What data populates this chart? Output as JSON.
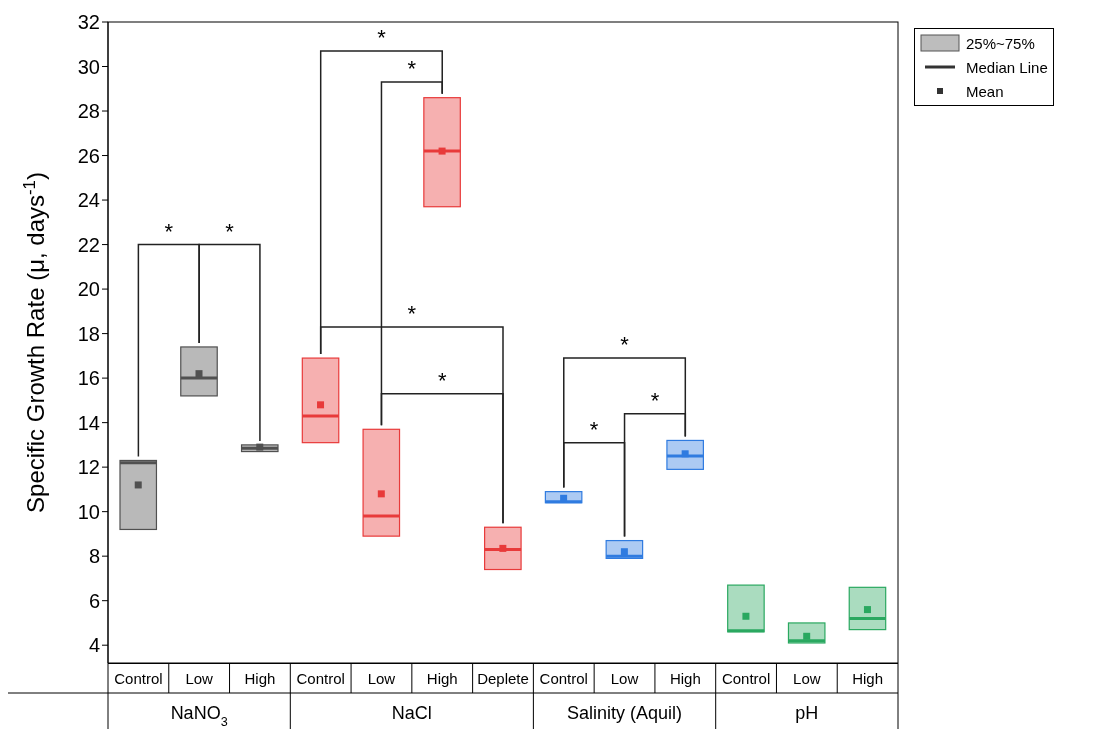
{
  "chart_data": {
    "type": "box",
    "ylabel": "Specific Growth Rate (μ, days$^{-1}$)",
    "categories": [
      "Control",
      "Low",
      "High",
      "Control",
      "Low",
      "High",
      "Deplete",
      "Control",
      "Low",
      "High",
      "Control",
      "Low",
      "High"
    ],
    "ylim": [
      3.2,
      32
    ],
    "yticks": [
      4,
      6,
      8,
      10,
      12,
      14,
      16,
      18,
      20,
      22,
      24,
      26,
      28,
      30,
      32
    ],
    "series": [
      {
        "color": "#505050",
        "boxes": [
          {
            "low": 9.2,
            "q1": 9.2,
            "median": 12.2,
            "q3": 12.3,
            "high": 12.3,
            "mean": 11.2
          },
          {
            "low": 15.2,
            "q1": 15.2,
            "median": 16.0,
            "q3": 17.4,
            "high": 17.4,
            "mean": 16.2
          },
          {
            "low": 12.7,
            "q1": 12.7,
            "median": 12.85,
            "q3": 13.0,
            "high": 13.0,
            "mean": 12.9
          },
          null,
          null,
          null,
          null,
          null,
          null,
          null,
          null,
          null,
          null
        ]
      },
      {
        "color": "#e83a3a",
        "boxes": [
          null,
          null,
          null,
          {
            "low": 13.1,
            "q1": 13.1,
            "median": 14.3,
            "q3": 16.9,
            "high": 16.9,
            "mean": 14.8
          },
          {
            "low": 8.9,
            "q1": 8.9,
            "median": 9.8,
            "q3": 13.7,
            "high": 13.7,
            "mean": 10.8
          },
          {
            "low": 23.7,
            "q1": 23.7,
            "median": 26.2,
            "q3": 28.6,
            "high": 28.6,
            "mean": 26.2
          },
          {
            "low": 7.4,
            "q1": 7.4,
            "median": 8.3,
            "q3": 9.3,
            "high": 9.3,
            "mean": 8.35
          },
          null,
          null,
          null,
          null,
          null,
          null
        ]
      },
      {
        "color": "#2f7be0",
        "boxes": [
          null,
          null,
          null,
          null,
          null,
          null,
          null,
          {
            "low": 10.4,
            "q1": 10.4,
            "median": 10.45,
            "q3": 10.9,
            "high": 10.9,
            "mean": 10.6
          },
          {
            "low": 7.9,
            "q1": 7.9,
            "median": 8.0,
            "q3": 8.7,
            "high": 8.7,
            "mean": 8.2
          },
          {
            "low": 11.9,
            "q1": 11.9,
            "median": 12.5,
            "q3": 13.2,
            "high": 13.2,
            "mean": 12.6
          },
          null,
          null,
          null
        ]
      },
      {
        "color": "#2aa860",
        "boxes": [
          null,
          null,
          null,
          null,
          null,
          null,
          null,
          null,
          null,
          null,
          {
            "low": 4.6,
            "q1": 4.6,
            "median": 4.65,
            "q3": 6.7,
            "high": 6.7,
            "mean": 5.3
          },
          {
            "low": 4.1,
            "q1": 4.1,
            "median": 4.2,
            "q3": 5.0,
            "high": 5.0,
            "mean": 4.4
          },
          {
            "low": 4.7,
            "q1": 4.7,
            "median": 5.2,
            "q3": 6.6,
            "high": 6.6,
            "mean": 5.6
          }
        ]
      }
    ],
    "annotations": [
      "25%~75%",
      "Median Line",
      "Mean",
      "NaNO$_{3}$",
      "NaCl",
      "Salinity (Aquil)",
      "pH",
      "*",
      "*",
      "*",
      "*",
      "*",
      "*",
      "*",
      "*",
      "*"
    ]
  }
}
